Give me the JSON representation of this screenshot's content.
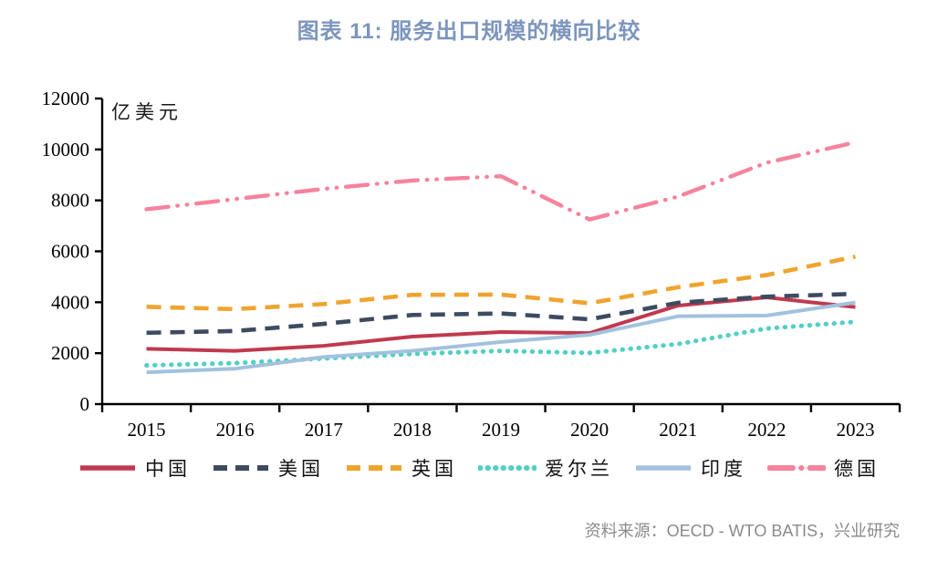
{
  "title": "图表  11: 服务出口规模的横向比较",
  "source": "资料来源：OECD - WTO BATIS，兴业研究",
  "colors": {
    "title_text": "#7C95BD",
    "axis": "#000000",
    "source_text": "#8A8A8A"
  },
  "chart_data": {
    "type": "line",
    "title": "图表 11: 服务出口规模的横向比较",
    "unit_label": "亿美元",
    "xlabel": "",
    "ylabel": "亿美元",
    "categories": [
      "2015",
      "2016",
      "2017",
      "2018",
      "2019",
      "2020",
      "2021",
      "2022",
      "2023"
    ],
    "ylim": [
      0,
      12000
    ],
    "ytick_step": 2000,
    "grid": false,
    "legend_position": "bottom",
    "series": [
      {
        "name": "中国",
        "color": "#C0394E",
        "style": "solid",
        "values": [
          2170,
          2090,
          2290,
          2650,
          2830,
          2790,
          3870,
          4190,
          3810
        ]
      },
      {
        "name": "美国",
        "color": "#3D4B61",
        "style": "dashed",
        "values": [
          2800,
          2870,
          3150,
          3500,
          3560,
          3330,
          3980,
          4220,
          4330
        ]
      },
      {
        "name": "英国",
        "color": "#EFA42F",
        "style": "dashed",
        "values": [
          3820,
          3730,
          3930,
          4290,
          4300,
          3960,
          4590,
          5070,
          5790
        ]
      },
      {
        "name": "爱尔兰",
        "color": "#52CFC5",
        "style": "dotted",
        "values": [
          1520,
          1610,
          1790,
          1970,
          2090,
          2010,
          2360,
          2970,
          3230
        ]
      },
      {
        "name": "印度",
        "color": "#A2C2DE",
        "style": "solid",
        "values": [
          1250,
          1390,
          1850,
          2090,
          2440,
          2720,
          3450,
          3480,
          3990
        ]
      },
      {
        "name": "德国",
        "color": "#F5839D",
        "style": "dashdot",
        "values": [
          7650,
          8050,
          8450,
          8780,
          8950,
          7250,
          8150,
          9480,
          10280
        ]
      }
    ]
  }
}
